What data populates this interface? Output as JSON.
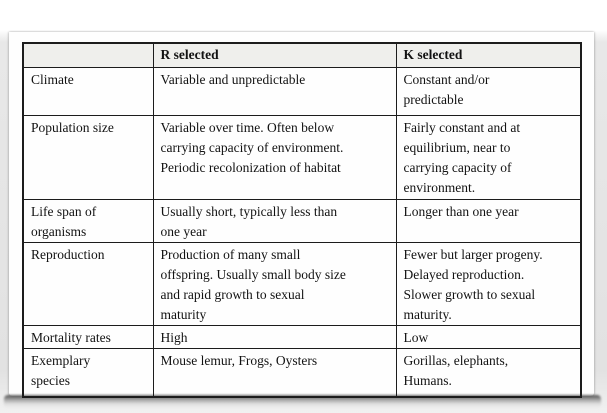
{
  "page": {
    "background_color": "#e5e5e5",
    "card_color": "#fefefe",
    "border_color": "#1c1c1c",
    "header_fill_color": "#efefec"
  },
  "table": {
    "header": {
      "col1": "",
      "col2": "R selected",
      "col3": "K selected"
    },
    "rows": [
      {
        "label": "Climate",
        "r": "Variable and unpredictable",
        "k": [
          "Constant and/or",
          "predictable"
        ]
      },
      {
        "label": "Population size",
        "r": [
          "Variable over time. Often below",
          "carrying capacity of environment.",
          "Periodic recolonization of habitat"
        ],
        "k": [
          "Fairly constant and at",
          "equilibrium, near to",
          "carrying capacity of",
          "environment."
        ]
      },
      {
        "label": [
          "Life span of",
          "organisms"
        ],
        "r": [
          "Usually short, typically less than",
          "one year"
        ],
        "k": "Longer than one year"
      },
      {
        "label": "Reproduction",
        "r": [
          "Production of many small",
          "offspring. Usually small body size",
          "and rapid growth to sexual",
          "maturity"
        ],
        "k": [
          "Fewer but larger progeny.",
          "Delayed reproduction.",
          "Slower growth to  sexual",
          "maturity."
        ]
      },
      {
        "label": "Mortality rates",
        "r": "High",
        "k": "Low"
      },
      {
        "label": [
          "Exemplary",
          "species"
        ],
        "r": "Mouse lemur, Frogs, Oysters",
        "k": [
          "Gorillas, elephants,",
          "Humans."
        ]
      }
    ]
  }
}
